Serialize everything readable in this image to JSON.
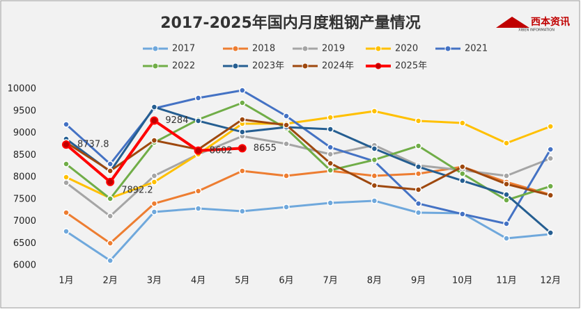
{
  "brand": {
    "name": "西本资讯",
    "subtitle": "XIBEN INFORMATION"
  },
  "chart_data": {
    "type": "line",
    "title": "2017-2025年国内月度粗钢产量情况",
    "categories": [
      "1月",
      "2月",
      "3月",
      "4月",
      "5月",
      "6月",
      "7月",
      "8月",
      "9月",
      "10月",
      "11月",
      "12月"
    ],
    "ylim": [
      6000,
      10000
    ],
    "yticks": [
      6000,
      6500,
      7000,
      7500,
      8000,
      8500,
      9000,
      9500,
      10000
    ],
    "grid": false,
    "series": [
      {
        "name": "2017",
        "color": "#6fa8dc",
        "values": [
          6772,
          6110,
          7213,
          7291,
          7228,
          7323,
          7417,
          7465,
          7197,
          7181,
          6614,
          6709
        ]
      },
      {
        "name": "2018",
        "color": "#ed7d31",
        "values": [
          7197,
          6504,
          7402,
          7685,
          8142,
          8031,
          8142,
          8031,
          8079,
          8236,
          7890,
          7606
        ]
      },
      {
        "name": "2019",
        "color": "#a5a5a5",
        "values": [
          7874,
          7118,
          8031,
          8520,
          8929,
          8756,
          8520,
          8724,
          8268,
          8157,
          8031,
          8425
        ]
      },
      {
        "name": "2020",
        "color": "#ffc000",
        "values": [
          8000,
          7527,
          7890,
          8520,
          9213,
          9213,
          9354,
          9496,
          9276,
          9228,
          8772,
          9150
        ]
      },
      {
        "name": "2021",
        "color": "#4472c4",
        "values": [
          9197,
          8299,
          9559,
          9795,
          9968,
          9386,
          8677,
          8362,
          7402,
          7165,
          6945,
          8630
        ]
      },
      {
        "name": "2022",
        "color": "#70ad47",
        "values": [
          8299,
          7512,
          8787,
          9307,
          9685,
          9102,
          8157,
          8394,
          8709,
          8079,
          7480,
          7795
        ]
      },
      {
        "name": "2023年",
        "color": "#255e91",
        "values": [
          8866,
          8126,
          9590,
          9276,
          9024,
          9134,
          9087,
          8646,
          8236,
          7921,
          7606,
          6740
        ]
      },
      {
        "name": "2024年",
        "color": "#9e480e",
        "values": [
          8787,
          8142,
          8834,
          8630,
          9307,
          9181,
          8315,
          7811,
          7717,
          8236,
          7843,
          7590
        ]
      },
      {
        "name": "2025年",
        "color": "#ff0000",
        "values": [
          8737.8,
          7892.2,
          9284,
          8602,
          8655,
          null,
          null,
          null,
          null,
          null,
          null,
          null
        ],
        "data_labels": true
      }
    ]
  }
}
